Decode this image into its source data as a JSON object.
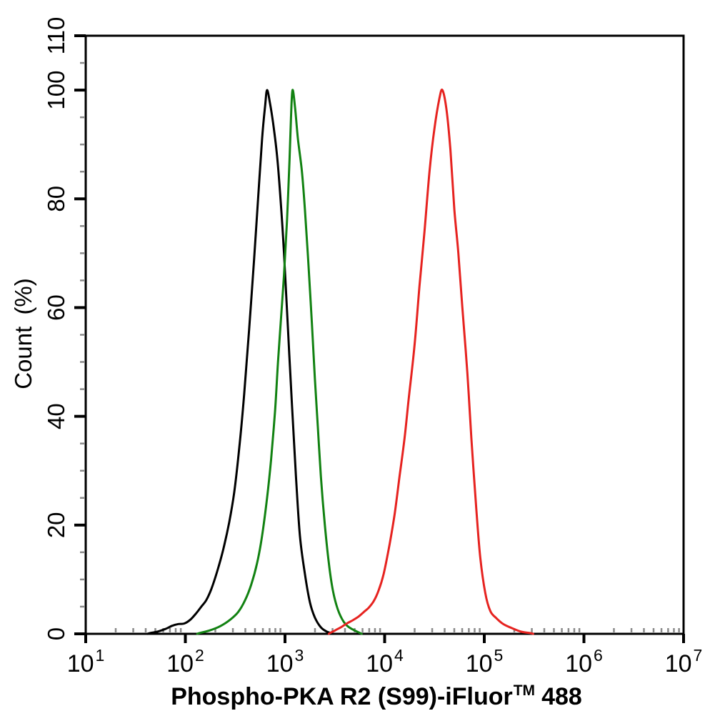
{
  "figure": {
    "background_color": "#ffffff",
    "ylabel": "Count (%)",
    "xlabel": {
      "full": "Phospho-PKA R2 (S99)-iFluor™ 488",
      "pre": "Phospho-PKA R2 (S99)-iFluor",
      "sup": "TM",
      "post": "488"
    }
  },
  "chart_data": {
    "type": "line",
    "subtype": "flow-cytometry-histogram",
    "title": "",
    "xlabel": "Phospho-PKA R2 (S99)-iFluor™ 488",
    "ylabel": "Count (%)",
    "grid": false,
    "legend": null,
    "x_scale": "log10",
    "xlim_log": [
      1,
      7
    ],
    "x_major_tick_exponents": [
      1,
      2,
      3,
      4,
      5,
      6,
      7
    ],
    "x_major_tick_labels": [
      "10^1",
      "10^2",
      "10^3",
      "10^4",
      "10^5",
      "10^6",
      "10^7"
    ],
    "x_minor_mantissas": [
      2,
      3,
      4,
      5,
      6,
      7,
      8,
      9
    ],
    "ylim": [
      0,
      110
    ],
    "y_major_ticks": [
      0,
      20,
      40,
      60,
      80,
      100,
      110
    ],
    "y_major_tick_labels": [
      "0",
      "20",
      "40",
      "60",
      "80",
      "100",
      "110"
    ],
    "y_minor_step": 5,
    "axis_color": "#000000",
    "minor_tick_color": "#8a8a8a",
    "series": [
      {
        "name": "black-curve",
        "color": "#000000",
        "peak": {
          "x_value": 660,
          "y_percent": 100
        },
        "points_log_pct": [
          [
            1.62,
            0
          ],
          [
            1.72,
            0.4
          ],
          [
            1.8,
            0.9
          ],
          [
            1.87,
            1.5
          ],
          [
            1.93,
            1.8
          ],
          [
            1.99,
            1.9
          ],
          [
            2.05,
            2.6
          ],
          [
            2.11,
            3.8
          ],
          [
            2.16,
            5.0
          ],
          [
            2.21,
            6.2
          ],
          [
            2.26,
            8.2
          ],
          [
            2.32,
            11.5
          ],
          [
            2.38,
            15.5
          ],
          [
            2.44,
            20.5
          ],
          [
            2.49,
            26
          ],
          [
            2.54,
            34
          ],
          [
            2.59,
            44
          ],
          [
            2.64,
            56
          ],
          [
            2.69,
            69
          ],
          [
            2.73,
            80
          ],
          [
            2.77,
            91
          ],
          [
            2.8,
            97
          ],
          [
            2.82,
            100
          ],
          [
            2.85,
            97.5
          ],
          [
            2.88,
            94
          ],
          [
            2.92,
            88
          ],
          [
            2.955,
            80
          ],
          [
            2.99,
            70
          ],
          [
            3.03,
            56
          ],
          [
            3.07,
            42
          ],
          [
            3.11,
            29
          ],
          [
            3.15,
            18
          ],
          [
            3.2,
            11
          ],
          [
            3.25,
            5.8
          ],
          [
            3.3,
            3.0
          ],
          [
            3.36,
            1.2
          ],
          [
            3.42,
            0.4
          ],
          [
            3.48,
            0
          ]
        ]
      },
      {
        "name": "green-curve",
        "color": "#128212",
        "peak": {
          "x_value": 1190,
          "y_percent": 100
        },
        "points_log_pct": [
          [
            2.12,
            0
          ],
          [
            2.24,
            0.6
          ],
          [
            2.35,
            1.4
          ],
          [
            2.45,
            2.6
          ],
          [
            2.53,
            4.0
          ],
          [
            2.6,
            6.2
          ],
          [
            2.66,
            9.0
          ],
          [
            2.72,
            13
          ],
          [
            2.77,
            18
          ],
          [
            2.82,
            25
          ],
          [
            2.86,
            32
          ],
          [
            2.9,
            41
          ],
          [
            2.93,
            50
          ],
          [
            2.96,
            58
          ],
          [
            2.99,
            66
          ],
          [
            3.02,
            76
          ],
          [
            3.045,
            87
          ],
          [
            3.06,
            95
          ],
          [
            3.075,
            100
          ],
          [
            3.1,
            97
          ],
          [
            3.13,
            91
          ],
          [
            3.17,
            85
          ],
          [
            3.2,
            78
          ],
          [
            3.235,
            68
          ],
          [
            3.27,
            57
          ],
          [
            3.3,
            47
          ],
          [
            3.33,
            38
          ],
          [
            3.36,
            29
          ],
          [
            3.4,
            20
          ],
          [
            3.44,
            13
          ],
          [
            3.48,
            8
          ],
          [
            3.53,
            4.5
          ],
          [
            3.59,
            2.2
          ],
          [
            3.66,
            1.0
          ],
          [
            3.77,
            0
          ]
        ]
      },
      {
        "name": "red-curve",
        "color": "#e62320",
        "peak": {
          "x_value": 38000,
          "y_percent": 100
        },
        "points_log_pct": [
          [
            3.44,
            0
          ],
          [
            3.5,
            0.6
          ],
          [
            3.56,
            1.2
          ],
          [
            3.62,
            1.9
          ],
          [
            3.68,
            2.5
          ],
          [
            3.74,
            3.2
          ],
          [
            3.79,
            4.0
          ],
          [
            3.84,
            4.8
          ],
          [
            3.89,
            6.0
          ],
          [
            3.94,
            8.0
          ],
          [
            3.99,
            11
          ],
          [
            4.05,
            16.5
          ],
          [
            4.1,
            22
          ],
          [
            4.15,
            29
          ],
          [
            4.2,
            36
          ],
          [
            4.24,
            43
          ],
          [
            4.3,
            53
          ],
          [
            4.35,
            64
          ],
          [
            4.4,
            74
          ],
          [
            4.45,
            85
          ],
          [
            4.5,
            93
          ],
          [
            4.55,
            98.5
          ],
          [
            4.58,
            100
          ],
          [
            4.62,
            96.5
          ],
          [
            4.66,
            89
          ],
          [
            4.7,
            78
          ],
          [
            4.74,
            70
          ],
          [
            4.78,
            60
          ],
          [
            4.83,
            48
          ],
          [
            4.87,
            36
          ],
          [
            4.92,
            23
          ],
          [
            4.96,
            14
          ],
          [
            5.01,
            7.5
          ],
          [
            5.06,
            4.2
          ],
          [
            5.12,
            2.9
          ],
          [
            5.19,
            1.8
          ],
          [
            5.27,
            1.1
          ],
          [
            5.37,
            0.4
          ],
          [
            5.49,
            0
          ]
        ]
      }
    ]
  }
}
